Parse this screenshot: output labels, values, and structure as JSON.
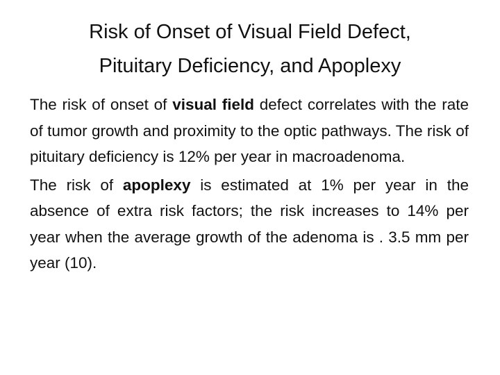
{
  "title": {
    "lines": [
      "Risk of Onset of Visual Field Defect,",
      "Pituitary Deficiency, and Apoplexy"
    ]
  },
  "body": {
    "paragraphs": [
      {
        "runs": [
          {
            "text": "The risk of onset of "
          },
          {
            "text": "visual field",
            "bold": true
          },
          {
            "text": " defect correlates with the rate of tumor growth and proximity to the optic pathways. The risk of pituitary deficiency is 12% per year in macroadenoma."
          }
        ]
      },
      {
        "runs": [
          {
            "text": "The risk of "
          },
          {
            "text": "apoplexy",
            "bold": true
          },
          {
            "text": " is estimated at 1% per year in the absence of extra risk factors; the risk increases to 14% per year when the average growth of the adenoma is . 3.5 mm per year (10)."
          }
        ]
      }
    ]
  }
}
